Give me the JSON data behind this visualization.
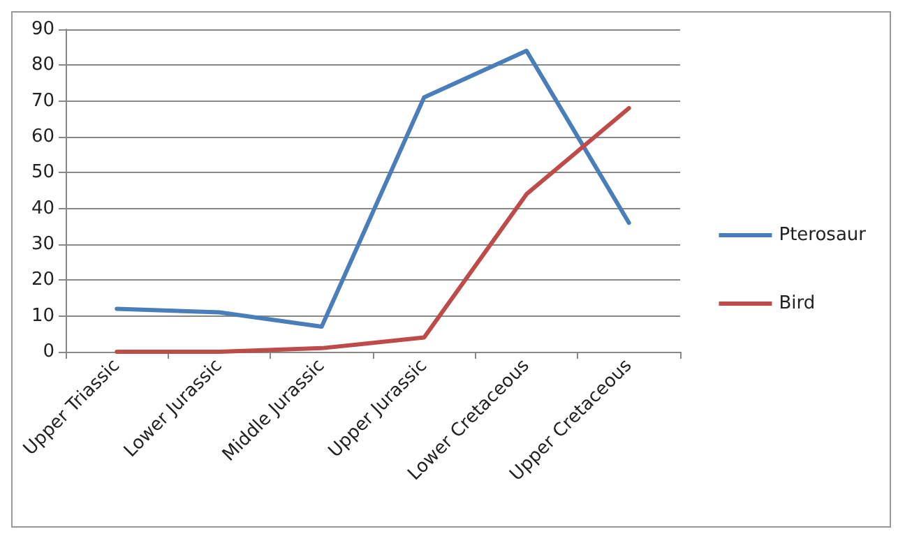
{
  "chart_data": {
    "type": "line",
    "categories": [
      "Upper Triassic",
      "Lower Jurassic",
      "Middle Jurassic",
      "Upper Jurassic",
      "Lower Cretaceous",
      "Upper Cretaceous"
    ],
    "series": [
      {
        "name": "Pterosaur",
        "color": "#4a7ebb",
        "values": [
          12,
          11,
          7,
          71,
          84,
          36
        ]
      },
      {
        "name": "Bird",
        "color": "#be4b48",
        "values": [
          0,
          0,
          1,
          4,
          44,
          68
        ]
      }
    ],
    "ylim": [
      0,
      90
    ],
    "yticks": [
      0,
      10,
      20,
      30,
      40,
      50,
      60,
      70,
      80,
      90
    ],
    "grid": "y",
    "legend": "right",
    "marker": "none",
    "line_style": "solid"
  }
}
